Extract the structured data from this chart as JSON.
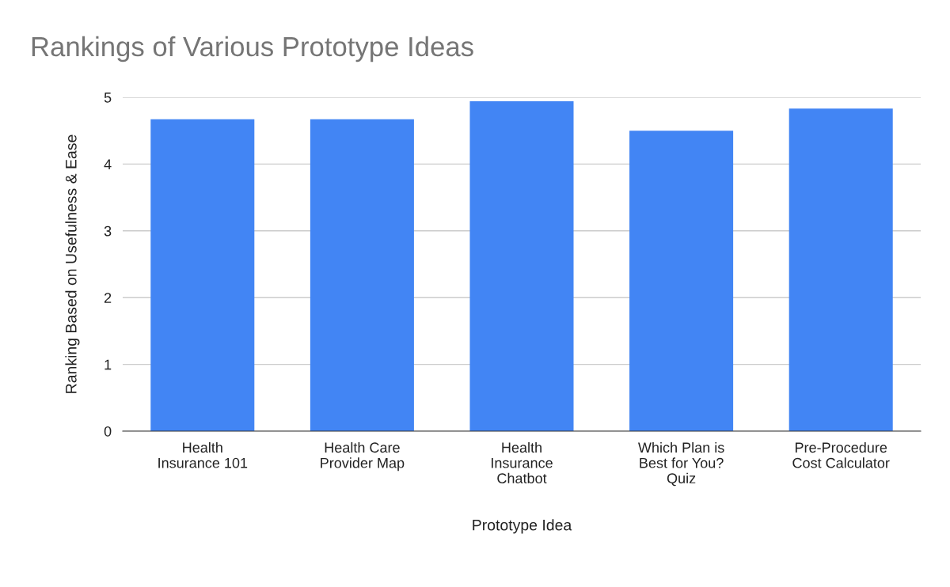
{
  "chart_data": {
    "type": "bar",
    "title": "Rankings of Various Prototype Ideas",
    "xlabel": "Prototype Idea",
    "ylabel": "Ranking Based on Usefulness & Ease",
    "categories": [
      "Health\nInsurance 101",
      "Health Care\nProvider Map",
      "Health\nInsurance\nChatbot",
      "Which Plan is\nBest for You?\nQuiz",
      "Pre-Procedure\nCost Calculator"
    ],
    "values": [
      4.67,
      4.67,
      4.94,
      4.5,
      4.83
    ],
    "color": "#4285f4",
    "ylim": [
      0,
      5
    ],
    "yticks": [
      0,
      1,
      2,
      3,
      4,
      5
    ],
    "grid": "y",
    "legend": false
  }
}
